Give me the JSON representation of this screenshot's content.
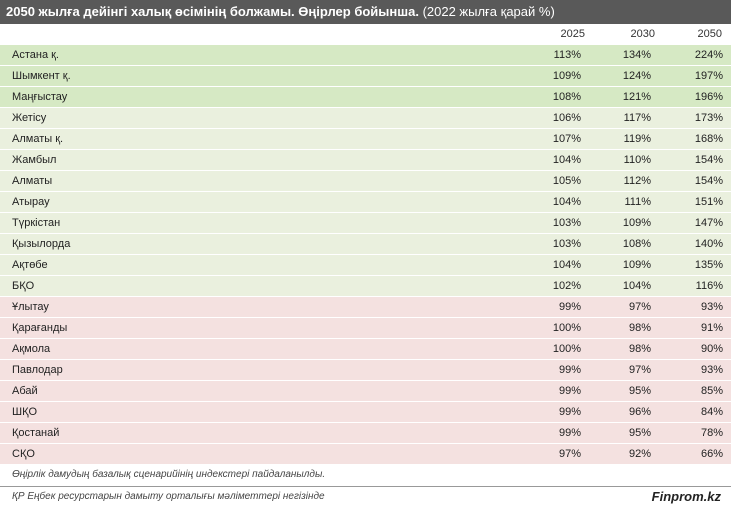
{
  "title": {
    "bold": "2050 жылға дейінгі халық өсімінің болжамы. Өңірлер бойынша.",
    "normal": "(2022 жылға қарай %)"
  },
  "columns": [
    "2025",
    "2030",
    "2050"
  ],
  "rows": [
    {
      "region": "Астана қ.",
      "v2025": "113%",
      "v2030": "134%",
      "v2050": "224%",
      "band": "a"
    },
    {
      "region": "Шымкент қ.",
      "v2025": "109%",
      "v2030": "124%",
      "v2050": "197%",
      "band": "a"
    },
    {
      "region": "Маңғыстау",
      "v2025": "108%",
      "v2030": "121%",
      "v2050": "196%",
      "band": "a"
    },
    {
      "region": "Жетісу",
      "v2025": "106%",
      "v2030": "117%",
      "v2050": "173%",
      "band": "b"
    },
    {
      "region": "Алматы қ.",
      "v2025": "107%",
      "v2030": "119%",
      "v2050": "168%",
      "band": "b"
    },
    {
      "region": "Жамбыл",
      "v2025": "104%",
      "v2030": "110%",
      "v2050": "154%",
      "band": "b"
    },
    {
      "region": "Алматы",
      "v2025": "105%",
      "v2030": "112%",
      "v2050": "154%",
      "band": "b"
    },
    {
      "region": "Атырау",
      "v2025": "104%",
      "v2030": "111%",
      "v2050": "151%",
      "band": "b"
    },
    {
      "region": "Түркістан",
      "v2025": "103%",
      "v2030": "109%",
      "v2050": "147%",
      "band": "b"
    },
    {
      "region": "Қызылорда",
      "v2025": "103%",
      "v2030": "108%",
      "v2050": "140%",
      "band": "b"
    },
    {
      "region": "Ақтөбе",
      "v2025": "104%",
      "v2030": "109%",
      "v2050": "135%",
      "band": "b"
    },
    {
      "region": "БҚО",
      "v2025": "102%",
      "v2030": "104%",
      "v2050": "116%",
      "band": "b"
    },
    {
      "region": "Ұлытау",
      "v2025": "99%",
      "v2030": "97%",
      "v2050": "93%",
      "band": "c"
    },
    {
      "region": "Қарағанды",
      "v2025": "100%",
      "v2030": "98%",
      "v2050": "91%",
      "band": "c"
    },
    {
      "region": "Ақмола",
      "v2025": "100%",
      "v2030": "98%",
      "v2050": "90%",
      "band": "c"
    },
    {
      "region": "Павлодар",
      "v2025": "99%",
      "v2030": "97%",
      "v2050": "93%",
      "band": "c"
    },
    {
      "region": "Абай",
      "v2025": "99%",
      "v2030": "95%",
      "v2050": "85%",
      "band": "c"
    },
    {
      "region": "ШҚО",
      "v2025": "99%",
      "v2030": "96%",
      "v2050": "84%",
      "band": "c"
    },
    {
      "region": "Қостанай",
      "v2025": "99%",
      "v2030": "95%",
      "v2050": "78%",
      "band": "c"
    },
    {
      "region": "СҚО",
      "v2025": "97%",
      "v2030": "92%",
      "v2050": "66%",
      "band": "c"
    }
  ],
  "band_colors": {
    "a": "#d6e9c4",
    "b": "#eaf0de",
    "c": "#f4e1e0"
  },
  "note": "Өңірлік дамудың базалық сценарийінің индекстері пайдаланылды.",
  "source": "ҚР Еңбек ресурстарын дамыту орталығы мәліметтері негізінде",
  "brand": "Finprom.kz"
}
